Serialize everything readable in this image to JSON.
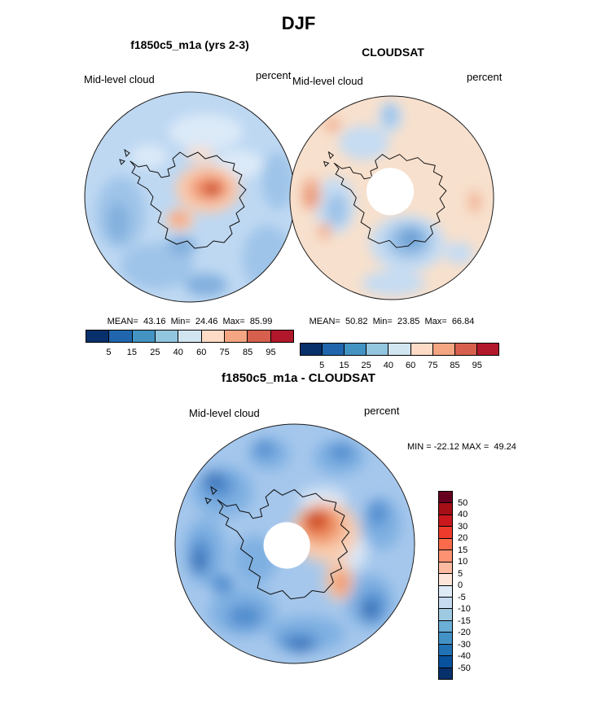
{
  "title": "DJF",
  "panels": {
    "model": {
      "title": "f1850c5_m1a (yrs 2-3)",
      "var_label": "Mid-level cloud",
      "units_label": "percent",
      "stats_line": "MEAN=  43.16  Min=  24.46  Max=  85.99"
    },
    "obs": {
      "title": "CLOUDSAT",
      "var_label": "Mid-level cloud",
      "units_label": "percent",
      "stats_line": "MEAN=  50.82  Min=  23.85  Max=  66.84"
    },
    "diff": {
      "title": "f1850c5_m1a - CLOUDSAT",
      "var_label": "Mid-level cloud",
      "units_label": "percent",
      "minmax_line": "MIN = -22.12 MAX =  49.24"
    }
  },
  "chart_data": [
    {
      "type": "heatmap",
      "subtype": "filled-contour south-polar stereographic map of Antarctica",
      "season": "DJF",
      "title": "f1850c5_m1a (yrs 2-3)",
      "variable": "Mid-level cloud",
      "units": "percent",
      "stats": {
        "mean": 43.16,
        "min": 24.46,
        "max": 85.99
      },
      "colorbar": {
        "orientation": "horizontal",
        "levels": [
          5,
          15,
          25,
          40,
          60,
          75,
          85,
          95
        ],
        "tick_labels": [
          "5",
          "15",
          "25",
          "40",
          "60",
          "75",
          "85",
          "95"
        ],
        "colors": [
          "#08306b",
          "#2166ac",
          "#4393c3",
          "#92c5de",
          "#d1e5f0",
          "#fddbc7",
          "#f4a582",
          "#d6604d",
          "#b2182b"
        ]
      },
      "description": "Light-blue field (40-60%) over most of the domain with an orange/red maximum (75-95%) just east of the pole over the continent and medium-blue minima around the periphery."
    },
    {
      "type": "heatmap",
      "subtype": "filled-contour south-polar stereographic map of Antarctica",
      "season": "DJF",
      "title": "CLOUDSAT",
      "variable": "Mid-level cloud",
      "units": "percent",
      "stats": {
        "mean": 50.82,
        "min": 23.85,
        "max": 66.84
      },
      "colorbar": {
        "orientation": "horizontal",
        "levels": [
          5,
          15,
          25,
          40,
          60,
          75,
          85,
          95
        ],
        "tick_labels": [
          "5",
          "15",
          "25",
          "40",
          "60",
          "75",
          "85",
          "95"
        ],
        "colors": [
          "#08306b",
          "#2166ac",
          "#4393c3",
          "#92c5de",
          "#d1e5f0",
          "#fddbc7",
          "#f4a582",
          "#d6604d",
          "#b2182b"
        ]
      },
      "description": "Pale-orange field (~50-65%) with blue minima (25-40%) near and east of the pole, reddish patches at the left edge, and a white observational data-void circle around the pole."
    },
    {
      "type": "heatmap",
      "subtype": "filled-contour difference map (model minus observations), south-polar stereographic",
      "season": "DJF",
      "title": "f1850c5_m1a - CLOUDSAT",
      "variable": "Mid-level cloud",
      "units": "percent",
      "stats": {
        "min": -22.12,
        "max": 49.24
      },
      "colorbar": {
        "orientation": "vertical",
        "levels": [
          50,
          40,
          30,
          20,
          15,
          10,
          5,
          0,
          -5,
          -10,
          -15,
          -20,
          -30,
          -40,
          -50
        ],
        "tick_labels": [
          "50",
          "40",
          "30",
          "20",
          "15",
          "10",
          "5",
          "0",
          "-5",
          "-10",
          "-15",
          "-20",
          "-30",
          "-40",
          "-50"
        ],
        "colors": [
          "#67001f",
          "#a50f15",
          "#cb181d",
          "#ef3b2c",
          "#fb6a4a",
          "#fc9272",
          "#fcbba1",
          "#fee5d9",
          "#deebf7",
          "#c6dbef",
          "#9ecae1",
          "#6baed6",
          "#4292c6",
          "#2171b5",
          "#08519c",
          "#08306b"
        ],
        "positive_color_meaning": "model greater than CLOUDSAT",
        "negative_color_meaning": "model less than CLOUDSAT"
      },
      "description": "Mostly negative (blue, -5 to -20%) differences over the ocean ring with a strong positive (orange/red, up to ~+49%) anomaly northeast of the pole over the continent; white data-void circle at the pole."
    }
  ]
}
